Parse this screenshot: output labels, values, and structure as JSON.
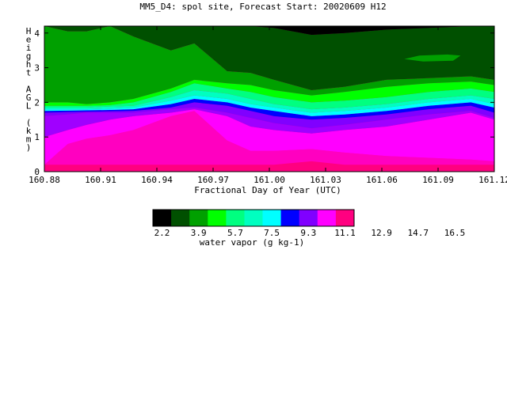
{
  "chart_data": {
    "type": "contour",
    "title": "MM5_D4: spol site,  Forecast Start: 20020609 H12",
    "xlabel": "Fractional Day of Year (UTC)",
    "ylabel": "Height AGL (km)",
    "xlim": [
      160.88,
      161.12
    ],
    "ylim": [
      0,
      4.2
    ],
    "x_ticks": [
      "160.88",
      "160.91",
      "160.94",
      "160.97",
      "161.00",
      "161.03",
      "161.06",
      "161.09",
      "161.12"
    ],
    "y_ticks": [
      "0",
      "1",
      "2",
      "3",
      "4"
    ],
    "colorbar": {
      "label": "water vapor (g kg-1)",
      "levels": [
        "2.2",
        "3.9",
        "5.7",
        "7.5",
        "9.3",
        "11.1",
        "12.9",
        "14.7",
        "16.5"
      ],
      "colors": [
        "#000000",
        "#005000",
        "#00a000",
        "#00ff00",
        "#00ff80",
        "#00ffc0",
        "#00ffff",
        "#0000ff",
        "#8000ff",
        "#ff00ff",
        "#ff0080"
      ]
    },
    "bands": [
      {
        "x": [
          160.88,
          160.8925,
          160.9025,
          160.915,
          160.9275,
          160.9475,
          160.96,
          160.9775,
          160.99,
          161.0025,
          161.0225,
          161.04,
          161.0625,
          161.085,
          161.1075,
          161.12
        ],
        "y": [
          0.2,
          0.2,
          0.2,
          0.2,
          0.2,
          0.2,
          0.2,
          0.2,
          0.2,
          0.2,
          0.3,
          0.2,
          0.2,
          0.2,
          0.2,
          0.2
        ]
      },
      {
        "x": [
          160.88,
          160.8925,
          160.9025,
          160.915,
          160.9275,
          160.9475,
          160.96,
          160.9775,
          160.99,
          161.0025,
          161.0225,
          161.04,
          161.0625,
          161.085,
          161.1075,
          161.12
        ],
        "y": [
          0.2,
          0.8,
          0.95,
          1.05,
          1.2,
          1.6,
          1.75,
          0.9,
          0.6,
          0.6,
          0.65,
          0.55,
          0.45,
          0.4,
          0.35,
          0.3
        ]
      },
      {
        "x": [
          160.88,
          160.8925,
          160.9025,
          160.915,
          160.9275,
          160.9475,
          160.96,
          160.9775,
          160.99,
          161.0025,
          161.0225,
          161.04,
          161.0625,
          161.085,
          161.1075,
          161.12
        ],
        "y": [
          1.0,
          1.2,
          1.35,
          1.5,
          1.6,
          1.7,
          1.8,
          1.6,
          1.3,
          1.2,
          1.1,
          1.2,
          1.3,
          1.5,
          1.7,
          1.5
        ]
      },
      {
        "x": [
          160.88,
          160.8925,
          160.9025,
          160.915,
          160.9275,
          160.9475,
          160.96,
          160.9775,
          160.99,
          161.0025,
          161.0225,
          161.04,
          161.0625,
          161.085,
          161.1075,
          161.12
        ],
        "y": [
          1.6,
          1.65,
          1.7,
          1.7,
          1.7,
          1.8,
          1.85,
          1.7,
          1.55,
          1.4,
          1.25,
          1.35,
          1.5,
          1.65,
          1.75,
          1.55
        ]
      },
      {
        "x": [
          160.88,
          160.8925,
          160.9025,
          160.915,
          160.9275,
          160.9475,
          160.96,
          160.9775,
          160.99,
          161.0025,
          161.0225,
          161.04,
          161.0625,
          161.085,
          161.1075,
          161.12
        ],
        "y": [
          1.7,
          1.72,
          1.73,
          1.74,
          1.75,
          1.85,
          2.0,
          1.9,
          1.75,
          1.6,
          1.5,
          1.55,
          1.65,
          1.8,
          1.9,
          1.7
        ]
      },
      {
        "x": [
          160.88,
          160.8925,
          160.9025,
          160.915,
          160.9275,
          160.9475,
          160.96,
          160.9775,
          160.99,
          161.0025,
          161.0225,
          161.04,
          161.0625,
          161.085,
          161.1075,
          161.12
        ],
        "y": [
          1.75,
          1.76,
          1.77,
          1.78,
          1.8,
          1.95,
          2.1,
          2.0,
          1.85,
          1.75,
          1.6,
          1.65,
          1.75,
          1.9,
          2.0,
          1.85
        ]
      },
      {
        "x": [
          160.88,
          160.8925,
          160.9025,
          160.915,
          160.9275,
          160.9475,
          160.96,
          160.9775,
          160.99,
          161.0025,
          161.0225,
          161.04,
          161.0625,
          161.085,
          161.1075,
          161.12
        ],
        "y": [
          1.8,
          1.8,
          1.8,
          1.82,
          1.85,
          2.05,
          2.2,
          2.1,
          1.95,
          1.85,
          1.7,
          1.75,
          1.85,
          2.0,
          2.1,
          1.95
        ]
      },
      {
        "x": [
          160.88,
          160.8925,
          160.9025,
          160.915,
          160.9275,
          160.9475,
          160.96,
          160.9775,
          160.99,
          161.0025,
          161.0225,
          161.04,
          161.0625,
          161.085,
          161.1075,
          161.12
        ],
        "y": [
          1.85,
          1.85,
          1.85,
          1.88,
          1.9,
          2.15,
          2.35,
          2.25,
          2.1,
          1.95,
          1.8,
          1.85,
          1.95,
          2.1,
          2.2,
          2.1
        ]
      },
      {
        "x": [
          160.88,
          160.8925,
          160.9025,
          160.915,
          160.9275,
          160.9475,
          160.96,
          160.9775,
          160.99,
          161.0025,
          161.0225,
          161.04,
          161.0625,
          161.085,
          161.1075,
          161.12
        ],
        "y": [
          1.9,
          1.9,
          1.9,
          1.92,
          2.0,
          2.3,
          2.55,
          2.4,
          2.3,
          2.15,
          2.0,
          2.05,
          2.15,
          2.3,
          2.4,
          2.3
        ]
      },
      {
        "x": [
          160.88,
          160.8925,
          160.9025,
          160.915,
          160.9275,
          160.9475,
          160.96,
          160.9775,
          160.99,
          161.0025,
          161.0225,
          161.04,
          161.0625,
          161.085,
          161.1075,
          161.12
        ],
        "y": [
          2.0,
          2.0,
          1.95,
          2.0,
          2.1,
          2.4,
          2.65,
          2.55,
          2.5,
          2.35,
          2.2,
          2.3,
          2.45,
          2.55,
          2.6,
          2.5
        ]
      },
      {
        "x": [
          160.88,
          160.8925,
          160.9025,
          160.915,
          160.9275,
          160.9475,
          160.96,
          160.9775,
          160.99,
          161.0025,
          161.0225,
          161.04,
          161.0625,
          161.085,
          161.1075,
          161.12
        ],
        "y": [
          4.2,
          4.05,
          4.05,
          4.2,
          3.9,
          3.5,
          3.7,
          2.9,
          2.85,
          2.65,
          2.35,
          2.45,
          2.65,
          2.7,
          2.75,
          2.65
        ]
      },
      {
        "x": [
          160.88,
          160.8925,
          160.9025,
          160.915,
          160.9275,
          160.9475,
          160.96,
          160.9775,
          160.99,
          161.0025,
          161.0225,
          161.04,
          161.0625,
          161.085,
          161.1075,
          161.12
        ],
        "y": [
          4.2,
          4.2,
          4.2,
          4.2,
          4.2,
          4.2,
          4.2,
          4.2,
          4.2,
          4.15,
          3.95,
          4.0,
          4.1,
          4.15,
          4.2,
          4.2
        ]
      }
    ],
    "islands": [
      {
        "level_index": 2,
        "points": [
          [
            161.072,
            3.25
          ],
          [
            161.08,
            3.35
          ],
          [
            161.095,
            3.38
          ],
          [
            161.102,
            3.35
          ],
          [
            161.098,
            3.2
          ],
          [
            161.082,
            3.18
          ]
        ]
      }
    ]
  }
}
